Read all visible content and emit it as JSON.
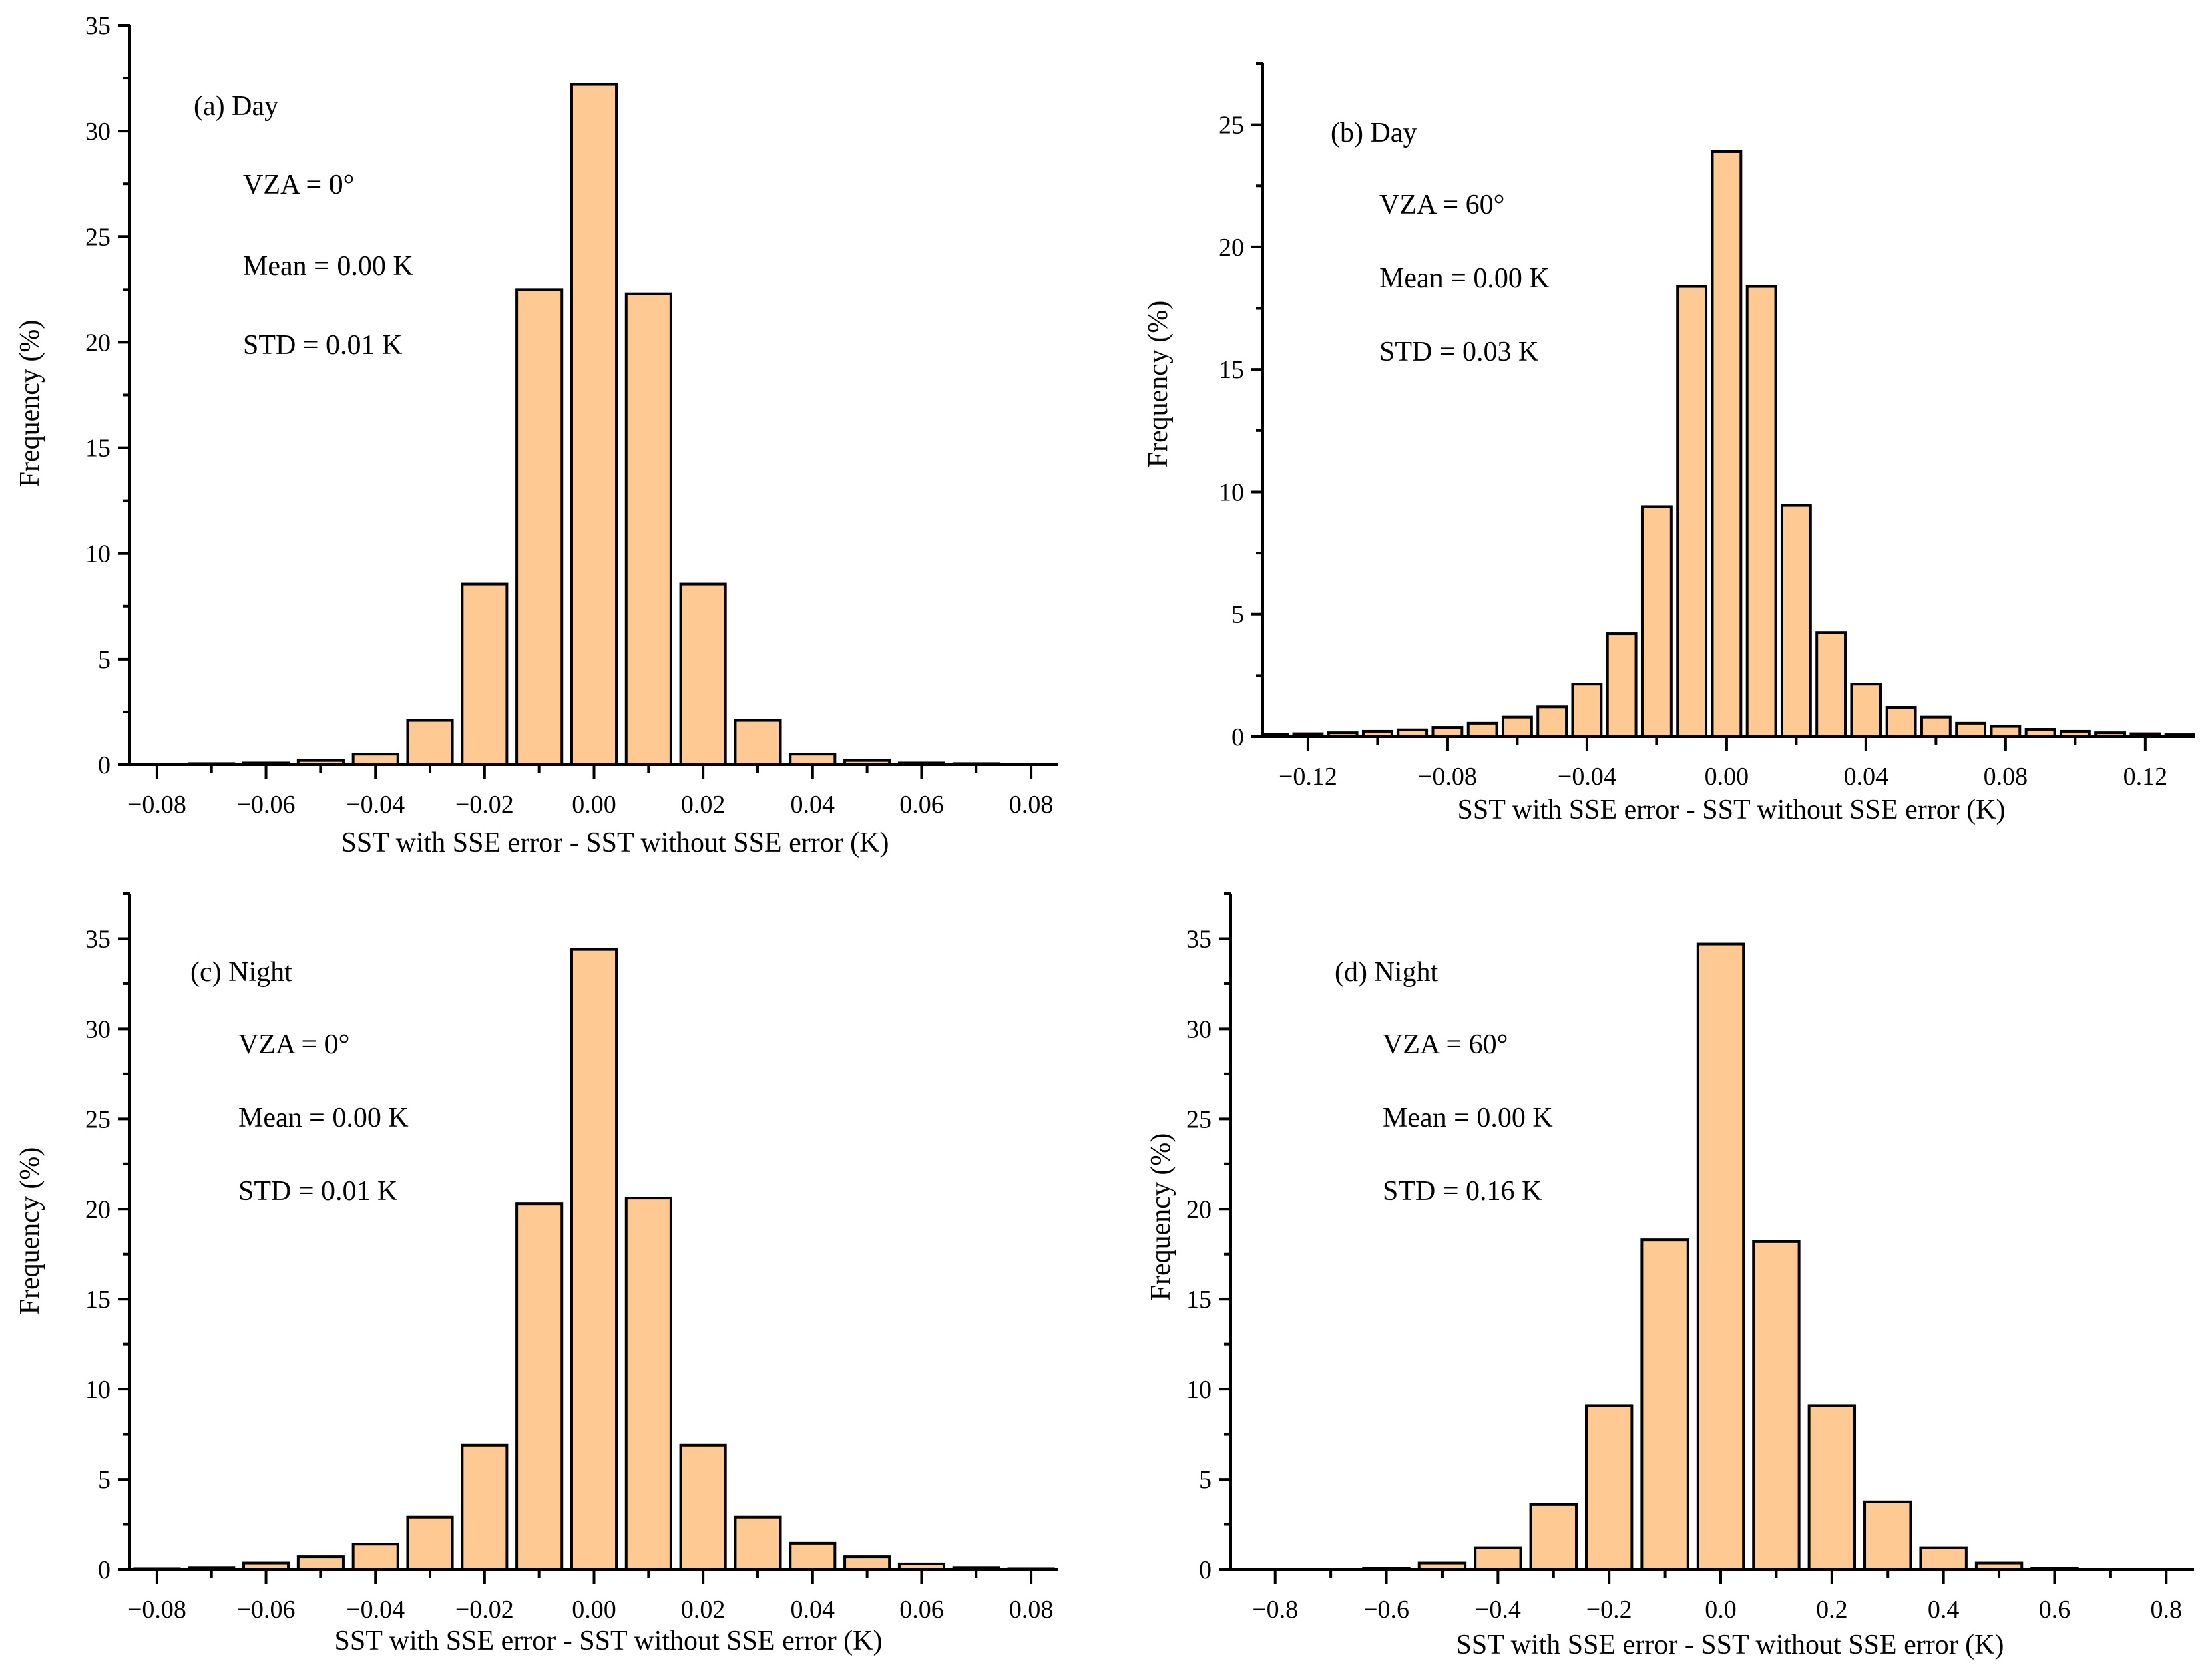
{
  "colors": {
    "bar_fill": "#FFC994",
    "bar_stroke": "#000000"
  },
  "chart_data": [
    {
      "type": "bar",
      "panel": "a",
      "annotation_title": "(a) Day",
      "annotations": [
        "VZA = 0°",
        "Mean = 0.00 K",
        "STD = 0.01 K"
      ],
      "xlabel": "SST with SSE error - SST without SSE error (K)",
      "ylabel": "Frequency (%)",
      "xlim": [
        -0.085,
        0.085
      ],
      "ylim": [
        0,
        35
      ],
      "xticks": [
        "−0.08",
        "−0.06",
        "−0.04",
        "−0.02",
        "0.00",
        "0.02",
        "0.04",
        "0.06",
        "0.08"
      ],
      "xtick_values": [
        -0.08,
        -0.06,
        -0.04,
        -0.02,
        0,
        0.02,
        0.04,
        0.06,
        0.08
      ],
      "xminor_step": 0.01,
      "yticks": [
        "0",
        "5",
        "10",
        "15",
        "20",
        "25",
        "30",
        "35"
      ],
      "ytick_values": [
        0,
        5,
        10,
        15,
        20,
        25,
        30,
        35
      ],
      "yminor_step": 2.5,
      "bin_width": 0.01,
      "x": [
        -0.07,
        -0.06,
        -0.05,
        -0.04,
        -0.03,
        -0.02,
        -0.01,
        0,
        0.01,
        0.02,
        0.03,
        0.04,
        0.05,
        0.06,
        0.07
      ],
      "values": [
        0.05,
        0.08,
        0.2,
        0.5,
        2.1,
        8.55,
        22.5,
        32.2,
        22.3,
        8.55,
        2.1,
        0.5,
        0.2,
        0.08,
        0.05
      ]
    },
    {
      "type": "bar",
      "panel": "b",
      "annotation_title": "(b) Day",
      "annotations": [
        "VZA = 60°",
        "Mean = 0.00 K",
        "STD = 0.03 K"
      ],
      "xlabel": "SST with SSE error - SST without SSE error (K)",
      "ylabel": "Frequency (%)",
      "xlim": [
        -0.133,
        0.134
      ],
      "ylim": [
        0,
        27.5
      ],
      "xticks": [
        "−0.12",
        "−0.08",
        "−0.04",
        "0.00",
        "0.04",
        "0.08",
        "0.12"
      ],
      "xtick_values": [
        -0.12,
        -0.08,
        -0.04,
        0,
        0.04,
        0.08,
        0.12
      ],
      "xminor_step": 0.02,
      "yticks": [
        "0",
        "5",
        "10",
        "15",
        "20",
        "25"
      ],
      "ytick_values": [
        0,
        5,
        10,
        15,
        20,
        25
      ],
      "yminor_step": 2.5,
      "bin_width": 0.01,
      "x": [
        -0.13,
        -0.12,
        -0.11,
        -0.1,
        -0.09,
        -0.08,
        -0.07,
        -0.06,
        -0.05,
        -0.04,
        -0.03,
        -0.02,
        -0.01,
        0,
        0.01,
        0.02,
        0.03,
        0.04,
        0.05,
        0.06,
        0.07,
        0.08,
        0.09,
        0.1,
        0.11,
        0.12,
        0.13
      ],
      "values": [
        0.1,
        0.12,
        0.16,
        0.22,
        0.28,
        0.38,
        0.55,
        0.8,
        1.22,
        2.15,
        4.2,
        9.4,
        18.4,
        23.9,
        18.4,
        9.45,
        4.25,
        2.15,
        1.2,
        0.8,
        0.55,
        0.42,
        0.3,
        0.22,
        0.16,
        0.12,
        0.08
      ]
    },
    {
      "type": "bar",
      "panel": "c",
      "annotation_title": "(c) Night",
      "annotations": [
        "VZA = 0°",
        "Mean = 0.00 K",
        "STD = 0.01 K"
      ],
      "xlabel": "SST with SSE error - SST without SSE error (K)",
      "ylabel": "Frequency (%)",
      "xlim": [
        -0.085,
        0.085
      ],
      "ylim": [
        0,
        37.5
      ],
      "xticks": [
        "−0.08",
        "−0.06",
        "−0.04",
        "−0.02",
        "0.00",
        "0.02",
        "0.04",
        "0.06",
        "0.08"
      ],
      "xtick_values": [
        -0.08,
        -0.06,
        -0.04,
        -0.02,
        0,
        0.02,
        0.04,
        0.06,
        0.08
      ],
      "xminor_step": 0.01,
      "yticks": [
        "0",
        "5",
        "10",
        "15",
        "20",
        "25",
        "30",
        "35"
      ],
      "ytick_values": [
        0,
        5,
        10,
        15,
        20,
        25,
        30,
        35
      ],
      "yminor_step": 2.5,
      "bin_width": 0.01,
      "x": [
        -0.08,
        -0.07,
        -0.06,
        -0.05,
        -0.04,
        -0.03,
        -0.02,
        -0.01,
        0,
        0.01,
        0.02,
        0.03,
        0.04,
        0.05,
        0.06,
        0.07,
        0.08
      ],
      "values": [
        0.02,
        0.1,
        0.35,
        0.7,
        1.4,
        2.9,
        6.9,
        20.3,
        34.4,
        20.6,
        6.9,
        2.9,
        1.45,
        0.7,
        0.3,
        0.1,
        0.02
      ]
    },
    {
      "type": "bar",
      "panel": "d",
      "annotation_title": "(d) Night",
      "annotations": [
        "VZA = 60°",
        "Mean = 0.00 K",
        "STD = 0.16 K"
      ],
      "xlabel": "SST with SSE error - SST without SSE error (K)",
      "ylabel": "Frequency (%)",
      "xlim": [
        -0.88,
        0.85
      ],
      "ylim": [
        0,
        37.5
      ],
      "xticks": [
        "−0.8",
        "−0.6",
        "−0.4",
        "−0.2",
        "0.0",
        "0.2",
        "0.4",
        "0.6",
        "0.8"
      ],
      "xtick_values": [
        -0.8,
        -0.6,
        -0.4,
        -0.2,
        0,
        0.2,
        0.4,
        0.6,
        0.8
      ],
      "xminor_step": 0.1,
      "yticks": [
        "0",
        "5",
        "10",
        "15",
        "20",
        "25",
        "30",
        "35"
      ],
      "ytick_values": [
        0,
        5,
        10,
        15,
        20,
        25,
        30,
        35
      ],
      "yminor_step": 2.5,
      "bin_width": 0.1,
      "x": [
        -0.6,
        -0.5,
        -0.4,
        -0.3,
        -0.2,
        -0.1,
        0,
        0.1,
        0.2,
        0.3,
        0.4,
        0.5,
        0.6
      ],
      "values": [
        0.05,
        0.35,
        1.2,
        3.6,
        9.1,
        18.3,
        34.7,
        18.2,
        9.1,
        3.75,
        1.2,
        0.35,
        0.05
      ]
    }
  ]
}
